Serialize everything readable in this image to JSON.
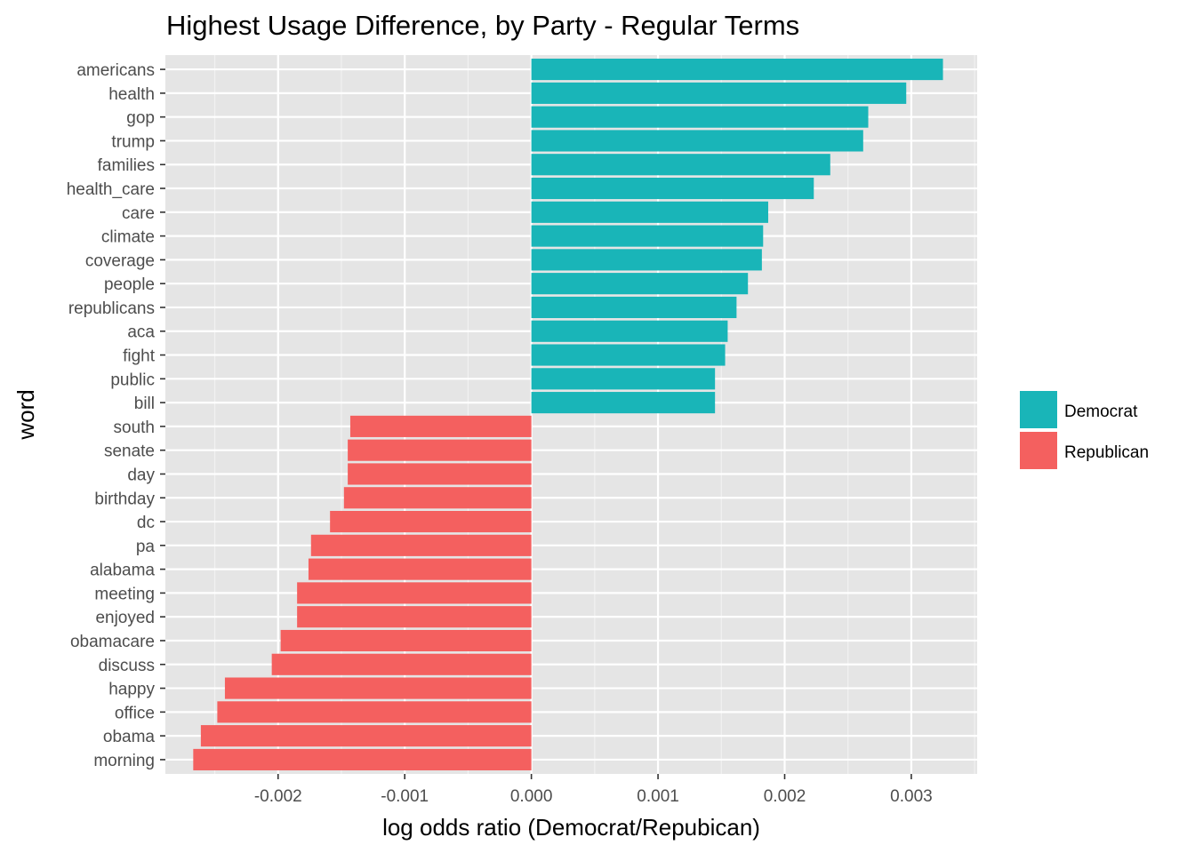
{
  "chart_data": {
    "type": "bar",
    "orientation": "horizontal",
    "title": "Highest Usage Difference, by Party - Regular Terms",
    "xlabel": "log odds ratio (Democrat/Repubican)",
    "ylabel": "word",
    "xlim": [
      -0.00289,
      0.00352
    ],
    "x_ticks": [
      -0.002,
      -0.001,
      0.0,
      0.001,
      0.002,
      0.003
    ],
    "x_tick_labels": [
      "-0.002",
      "-0.001",
      "0.000",
      "0.001",
      "0.002",
      "0.003"
    ],
    "grid": true,
    "legend_position": "right",
    "colors": {
      "Democrat": "#19B5B8",
      "Republican": "#F4605F"
    },
    "legend": [
      "Democrat",
      "Republican"
    ],
    "categories": [
      "americans",
      "health",
      "gop",
      "trump",
      "families",
      "health_care",
      "care",
      "climate",
      "coverage",
      "people",
      "republicans",
      "aca",
      "fight",
      "public",
      "bill",
      "south",
      "senate",
      "day",
      "birthday",
      "dc",
      "pa",
      "alabama",
      "meeting",
      "enjoyed",
      "obamacare",
      "discuss",
      "happy",
      "office",
      "obama",
      "morning"
    ],
    "values": [
      0.00325,
      0.00296,
      0.00266,
      0.00262,
      0.00236,
      0.00223,
      0.00187,
      0.00183,
      0.00182,
      0.00171,
      0.00162,
      0.00155,
      0.00153,
      0.00145,
      0.00145,
      -0.00143,
      -0.00145,
      -0.00145,
      -0.00148,
      -0.00159,
      -0.00174,
      -0.00176,
      -0.00185,
      -0.00185,
      -0.00198,
      -0.00205,
      -0.00242,
      -0.00248,
      -0.00261,
      -0.00267
    ],
    "party": [
      "Democrat",
      "Democrat",
      "Democrat",
      "Democrat",
      "Democrat",
      "Democrat",
      "Democrat",
      "Democrat",
      "Democrat",
      "Democrat",
      "Democrat",
      "Democrat",
      "Democrat",
      "Democrat",
      "Democrat",
      "Republican",
      "Republican",
      "Republican",
      "Republican",
      "Republican",
      "Republican",
      "Republican",
      "Republican",
      "Republican",
      "Republican",
      "Republican",
      "Republican",
      "Republican",
      "Republican",
      "Republican"
    ]
  }
}
